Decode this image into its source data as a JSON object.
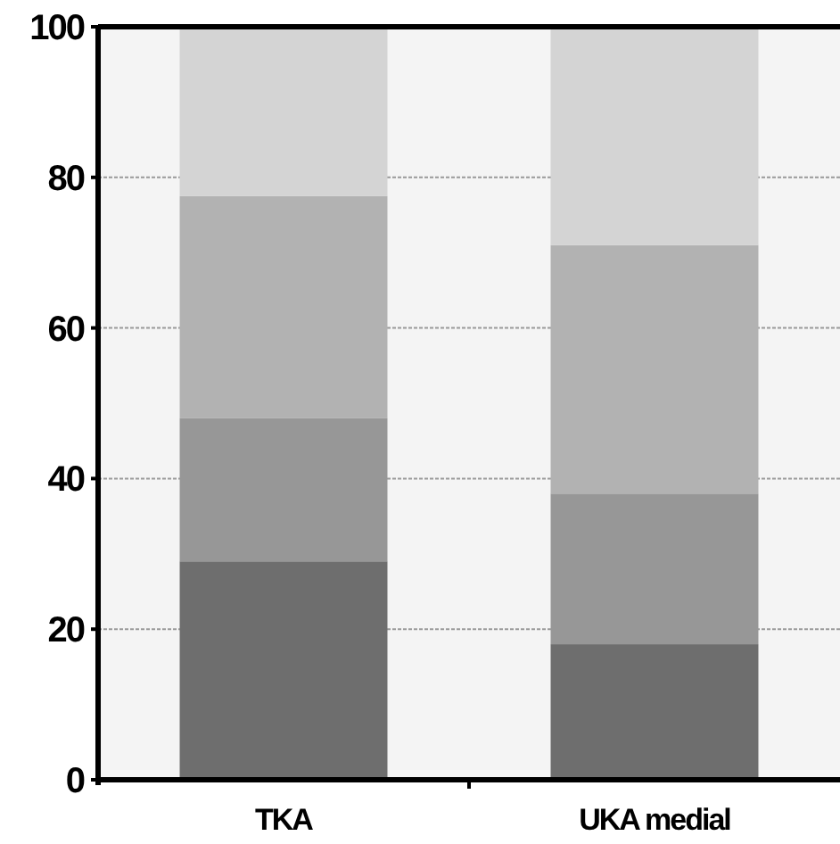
{
  "chart_data": {
    "type": "bar",
    "stacked": true,
    "categories": [
      "TKA",
      "UKA medial"
    ],
    "series": [
      {
        "color": "#6e6e6e",
        "values": [
          29,
          18
        ]
      },
      {
        "color": "#979797",
        "values": [
          19,
          20
        ]
      },
      {
        "color": "#b2b2b2",
        "values": [
          29.5,
          33
        ]
      },
      {
        "color": "#d4d4d4",
        "values": [
          22.5,
          29
        ]
      }
    ],
    "ylim": [
      0,
      100
    ],
    "yticks": [
      0,
      20,
      40,
      60,
      80,
      100
    ],
    "grid": "y"
  }
}
